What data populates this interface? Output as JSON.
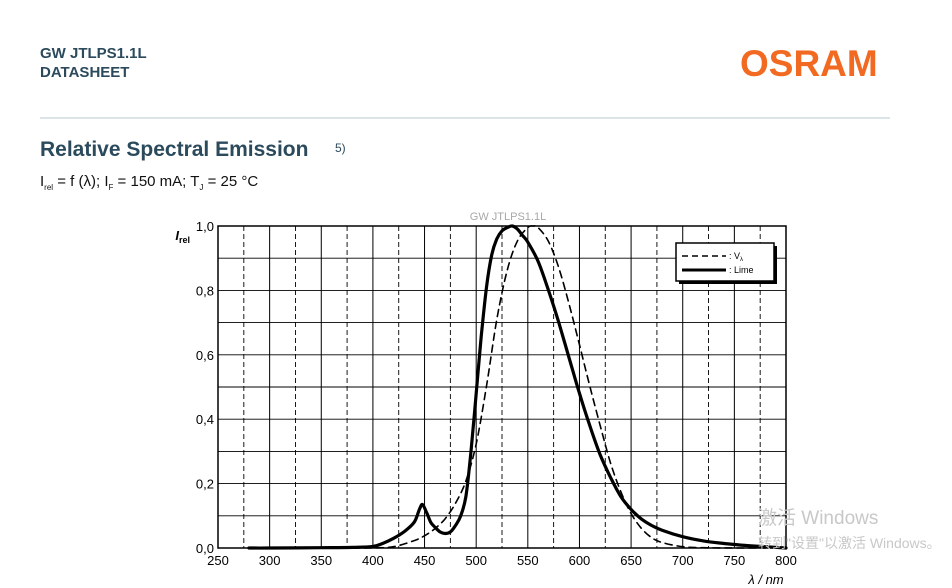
{
  "header": {
    "product": "GW JTLPS1.1L",
    "doc_type": "DATASHEET",
    "logo": "OSRAM",
    "logo_color": "#f26a21"
  },
  "section": {
    "title": "Relative Spectral Emission",
    "footnote": "5)",
    "conditions": {
      "i": "I",
      "i_sub": "rel",
      "mid1": " = f (λ); I",
      "if_sub": "F",
      "mid2": " = 150 mA; T",
      "tj_sub": "J",
      "end": " = 25 °C"
    }
  },
  "watermark": {
    "line1": "激活 Windows",
    "line2": "转到\"设置\"以激活 Windows。"
  },
  "chart_data": {
    "type": "line",
    "title": "GW JTLPS1.1L",
    "ylabel": "I",
    "ylabel_sub": "rel",
    "xlabel": "λ / nm",
    "xlim": [
      250,
      800
    ],
    "ylim": [
      0,
      1.0
    ],
    "grid": true,
    "x_ticks": [
      "250",
      "300",
      "350",
      "400",
      "450",
      "500",
      "550",
      "600",
      "650",
      "700",
      "750",
      "800"
    ],
    "y_ticks": [
      "0,0",
      "0,2",
      "0,4",
      "0,6",
      "0,8",
      "1,0"
    ],
    "legend_position": "top-right",
    "series": [
      {
        "name": "V",
        "name_sub": "λ",
        "style": "dashed",
        "color": "#000000",
        "x": [
          380,
          400,
          420,
          440,
          450,
          460,
          470,
          480,
          490,
          500,
          510,
          520,
          530,
          540,
          550,
          555,
          560,
          570,
          580,
          590,
          600,
          610,
          620,
          630,
          640,
          650,
          660,
          670,
          680,
          700,
          720,
          740,
          760,
          780
        ],
        "y": [
          0.0,
          0.0004,
          0.004,
          0.023,
          0.038,
          0.06,
          0.091,
          0.139,
          0.208,
          0.323,
          0.503,
          0.71,
          0.862,
          0.954,
          0.995,
          1.0,
          0.995,
          0.952,
          0.87,
          0.757,
          0.631,
          0.503,
          0.381,
          0.265,
          0.175,
          0.107,
          0.061,
          0.032,
          0.017,
          0.004,
          0.001,
          0.0003,
          0.0001,
          0.0
        ]
      },
      {
        "name": "Lime",
        "style": "solid",
        "color": "#000000",
        "x": [
          280,
          300,
          350,
          380,
          400,
          410,
          420,
          430,
          440,
          445,
          448,
          452,
          456,
          460,
          465,
          470,
          475,
          480,
          485,
          490,
          495,
          500,
          505,
          510,
          515,
          520,
          525,
          530,
          535,
          540,
          545,
          550,
          560,
          570,
          580,
          590,
          600,
          610,
          620,
          630,
          640,
          650,
          660,
          670,
          680,
          700,
          720,
          740,
          760,
          780,
          800
        ],
        "y": [
          0.0,
          0.0,
          0.001,
          0.002,
          0.005,
          0.015,
          0.03,
          0.05,
          0.08,
          0.12,
          0.135,
          0.11,
          0.08,
          0.065,
          0.05,
          0.045,
          0.05,
          0.07,
          0.1,
          0.16,
          0.3,
          0.48,
          0.66,
          0.81,
          0.91,
          0.96,
          0.985,
          0.995,
          1.0,
          0.99,
          0.97,
          0.95,
          0.89,
          0.8,
          0.7,
          0.59,
          0.48,
          0.38,
          0.29,
          0.22,
          0.16,
          0.12,
          0.09,
          0.07,
          0.055,
          0.035,
          0.022,
          0.014,
          0.008,
          0.004,
          0.0
        ]
      }
    ]
  }
}
